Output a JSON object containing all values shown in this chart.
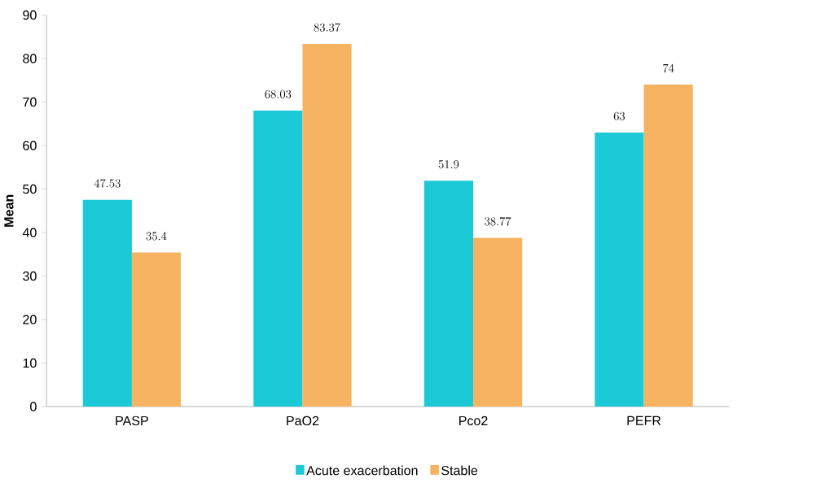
{
  "chart_data": {
    "type": "bar",
    "ylabel": "Mean",
    "categories": [
      "PASP",
      "PaO2",
      "Pco2",
      "PEFR"
    ],
    "series": [
      {
        "name": "Acute exacerbation",
        "color": "#1cc9d6",
        "values": [
          47.53,
          68.03,
          51.9,
          63
        ]
      },
      {
        "name": "Stable",
        "color": "#f6b462",
        "values": [
          35.4,
          83.37,
          38.77,
          74
        ]
      }
    ],
    "ylim": [
      0,
      90
    ],
    "yticks": [
      0,
      10,
      20,
      30,
      40,
      50,
      60,
      70,
      80,
      90
    ],
    "data_labels": true,
    "grid": false,
    "legend": "bottom"
  }
}
